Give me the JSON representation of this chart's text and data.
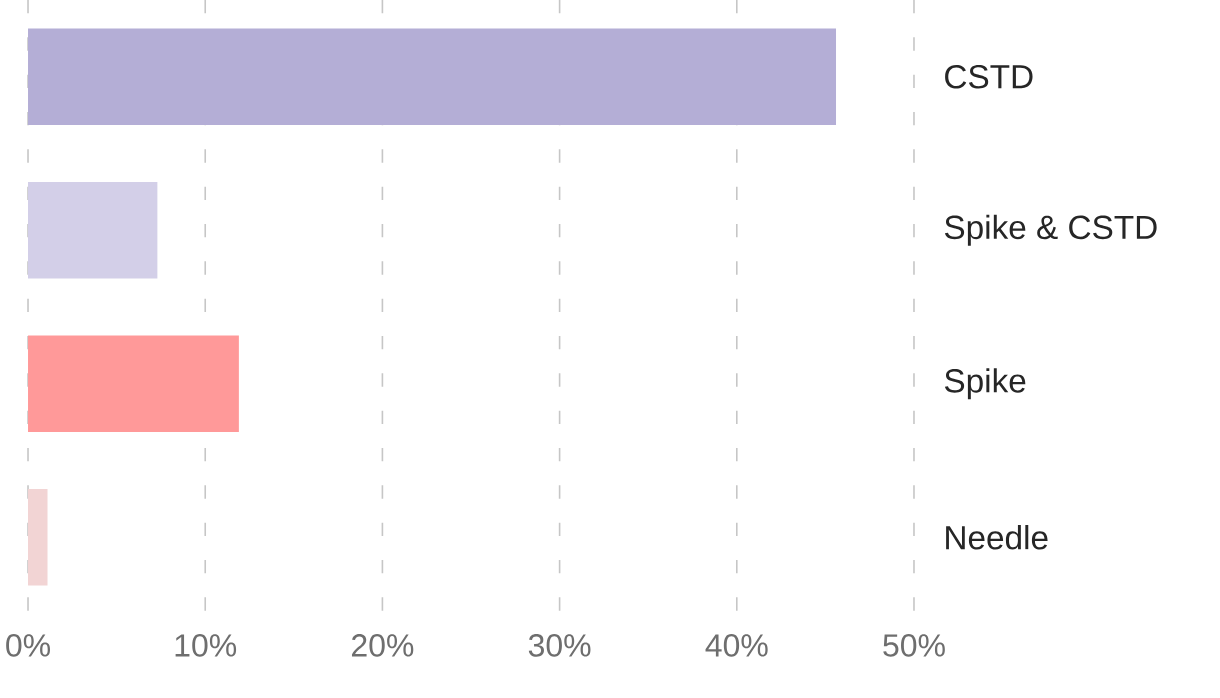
{
  "chart_data": {
    "type": "bar",
    "orientation": "horizontal",
    "categories": [
      "CSTD",
      "Spike & CSTD",
      "Spike",
      "Needle"
    ],
    "values": [
      45.6,
      7.3,
      11.9,
      1.1
    ],
    "colors": [
      "#b4aed6",
      "#d3cfe8",
      "#ff9999",
      "#f2d4d4"
    ],
    "xlim": [
      0,
      50
    ],
    "xticks": [
      {
        "value": 0,
        "label": "0%"
      },
      {
        "value": 10,
        "label": "10%"
      },
      {
        "value": 20,
        "label": "20%"
      },
      {
        "value": 30,
        "label": "30%"
      },
      {
        "value": 40,
        "label": "40%"
      },
      {
        "value": 50,
        "label": "50%"
      }
    ],
    "grid": "x"
  }
}
